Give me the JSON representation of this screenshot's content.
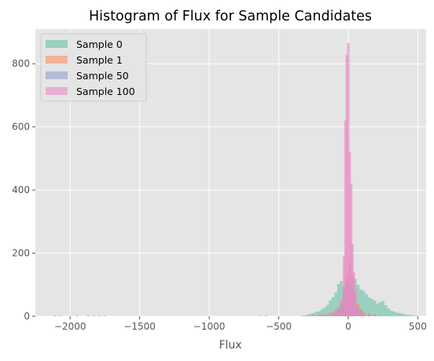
{
  "chart_data": {
    "type": "bar",
    "title": "Histogram of Flux for Sample Candidates",
    "xlabel": "Flux",
    "ylabel": "",
    "xlim": [
      -2250,
      560
    ],
    "ylim": [
      0,
      910
    ],
    "x_ticks": [
      -2000,
      -1500,
      -1000,
      -500,
      0,
      500
    ],
    "x_tick_labels": [
      "−2000",
      "−1500",
      "−1000",
      "−500",
      "0",
      "500"
    ],
    "y_ticks": [
      0,
      200,
      400,
      600,
      800
    ],
    "y_tick_labels": [
      "0",
      "200",
      "400",
      "600",
      "800"
    ],
    "grid": true,
    "legend_position": "top-left",
    "background": "#e5e5e5",
    "series": [
      {
        "name": "Sample 0",
        "color": "#66c2a5",
        "opacity": 0.6,
        "bins": [
          [
            -340,
            2
          ],
          [
            -320,
            3
          ],
          [
            -300,
            5
          ],
          [
            -280,
            8
          ],
          [
            -260,
            10
          ],
          [
            -240,
            14
          ],
          [
            -220,
            16
          ],
          [
            -200,
            22
          ],
          [
            -180,
            28
          ],
          [
            -160,
            36
          ],
          [
            -140,
            50
          ],
          [
            -120,
            60
          ],
          [
            -100,
            75
          ],
          [
            -80,
            102
          ],
          [
            -60,
            112
          ],
          [
            -40,
            95
          ],
          [
            -20,
            110
          ],
          [
            0,
            100
          ],
          [
            20,
            105
          ],
          [
            40,
            118
          ],
          [
            60,
            100
          ],
          [
            80,
            85
          ],
          [
            100,
            80
          ],
          [
            120,
            70
          ],
          [
            140,
            60
          ],
          [
            160,
            55
          ],
          [
            180,
            50
          ],
          [
            200,
            40
          ],
          [
            220,
            45
          ],
          [
            240,
            48
          ],
          [
            260,
            35
          ],
          [
            280,
            25
          ],
          [
            300,
            18
          ],
          [
            320,
            15
          ],
          [
            340,
            12
          ],
          [
            360,
            10
          ],
          [
            380,
            8
          ],
          [
            400,
            6
          ],
          [
            420,
            5
          ],
          [
            440,
            3
          ],
          [
            460,
            3
          ],
          [
            480,
            2
          ]
        ]
      },
      {
        "name": "Sample 1",
        "color": "#fc8d62",
        "opacity": 0.6,
        "bins": [
          [
            -2120,
            3
          ],
          [
            -2080,
            2
          ],
          [
            -1960,
            2
          ],
          [
            -1880,
            3
          ],
          [
            -1840,
            3
          ],
          [
            -1800,
            2
          ],
          [
            -1760,
            2
          ],
          [
            -640,
            2
          ],
          [
            -600,
            2
          ],
          [
            -300,
            3
          ],
          [
            -260,
            4
          ],
          [
            -220,
            6
          ],
          [
            -180,
            9
          ],
          [
            -140,
            14
          ],
          [
            -100,
            22
          ],
          [
            -80,
            30
          ],
          [
            -60,
            50
          ],
          [
            -40,
            90
          ],
          [
            -20,
            140
          ],
          [
            0,
            170
          ],
          [
            20,
            130
          ],
          [
            40,
            70
          ],
          [
            60,
            40
          ],
          [
            80,
            25
          ],
          [
            100,
            15
          ],
          [
            140,
            10
          ],
          [
            180,
            6
          ],
          [
            220,
            3
          ]
        ]
      },
      {
        "name": "Sample 50",
        "color": "#8da0cb",
        "opacity": 0.6,
        "bins": [
          [
            -200,
            4
          ],
          [
            -160,
            6
          ],
          [
            -120,
            10
          ],
          [
            -100,
            15
          ],
          [
            -80,
            25
          ],
          [
            -60,
            40
          ],
          [
            -40,
            70
          ],
          [
            -20,
            110
          ],
          [
            0,
            130
          ],
          [
            20,
            90
          ],
          [
            40,
            55
          ],
          [
            60,
            30
          ],
          [
            80,
            18
          ],
          [
            100,
            10
          ],
          [
            140,
            5
          ],
          [
            180,
            3
          ]
        ]
      },
      {
        "name": "Sample 100",
        "color": "#e78ac3",
        "opacity": 0.6,
        "bins": [
          [
            -200,
            3
          ],
          [
            -160,
            5
          ],
          [
            -120,
            8
          ],
          [
            -100,
            12
          ],
          [
            -80,
            20
          ],
          [
            -60,
            45
          ],
          [
            -40,
            190
          ],
          [
            -30,
            620
          ],
          [
            -20,
            828
          ],
          [
            -10,
            866
          ],
          [
            0,
            520
          ],
          [
            10,
            420
          ],
          [
            20,
            230
          ],
          [
            30,
            140
          ],
          [
            40,
            80
          ],
          [
            60,
            35
          ],
          [
            80,
            18
          ],
          [
            100,
            10
          ],
          [
            140,
            5
          ],
          [
            180,
            3
          ],
          [
            220,
            2
          ]
        ]
      }
    ],
    "bin_width": 20
  }
}
